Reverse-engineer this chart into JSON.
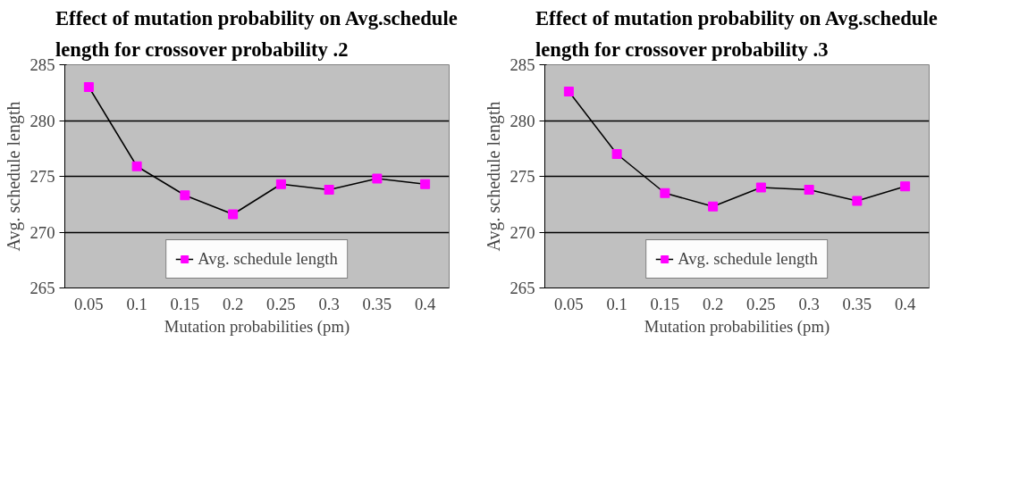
{
  "chart_data": [
    {
      "type": "line",
      "title": "Effect of mutation probability on Avg.schedule length for crossover probability .2",
      "xlabel": "Mutation probabilities (pm)",
      "ylabel": "Avg. schedule length",
      "categories": [
        "0.05",
        "0.1",
        "0.15",
        "0.2",
        "0.25",
        "0.3",
        "0.35",
        "0.4"
      ],
      "ylim": [
        265,
        285
      ],
      "yticks": [
        265,
        270,
        275,
        280,
        285
      ],
      "grid": "y",
      "legend": "bottom",
      "marker": "square",
      "line_style": "solid",
      "series": [
        {
          "name": "Avg. schedule length",
          "color": "#ff00ff",
          "values": [
            283.0,
            275.9,
            273.3,
            271.6,
            274.3,
            273.8,
            274.8,
            274.3
          ]
        }
      ]
    },
    {
      "type": "line",
      "title": "Effect of mutation probability on Avg.schedule length for crossover probability .3",
      "xlabel": "Mutation probabilities (pm)",
      "ylabel": "Avg. schedule length",
      "categories": [
        "0.05",
        "0.1",
        "0.15",
        "0.2",
        "0.25",
        "0.3",
        "0.35",
        "0.4"
      ],
      "ylim": [
        265,
        285
      ],
      "yticks": [
        265,
        270,
        275,
        280,
        285
      ],
      "grid": "y",
      "legend": "bottom",
      "marker": "square",
      "line_style": "solid",
      "series": [
        {
          "name": "Avg. schedule length",
          "color": "#ff00ff",
          "values": [
            282.6,
            277.0,
            273.5,
            272.3,
            274.0,
            273.8,
            272.8,
            274.1
          ]
        }
      ]
    }
  ]
}
